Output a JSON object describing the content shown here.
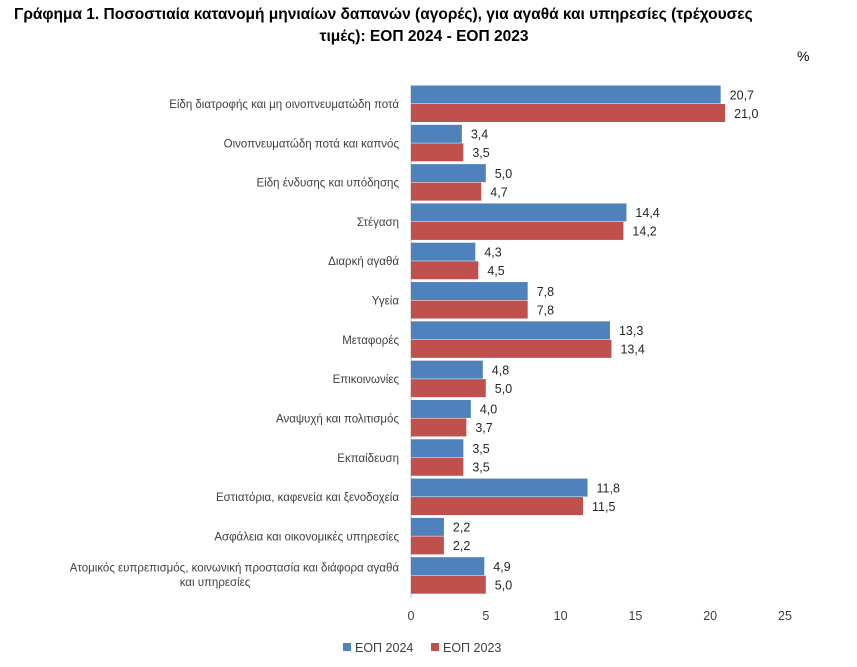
{
  "title_line1": "Γράφημα 1. Ποσοστιαία κατανομή μηνιαίων δαπανών (αγορές), για αγαθά και υπηρεσίες (τρέχουσες",
  "title_line2": "τιμές): ΕΟΠ 2024 - ΕΟΠ 2023",
  "unit": "%",
  "chart_data": {
    "type": "bar",
    "orientation": "horizontal",
    "title": "Γράφημα 1. Ποσοστιαία κατανομή μηνιαίων δαπανών (αγορές), για αγαθά και υπηρεσίες (τρέχουσες τιμές): ΕΟΠ 2024 - ΕΟΠ 2023",
    "categories": [
      [
        "Είδη διατροφής και μη οινοπνευματώδη ποτά"
      ],
      [
        "Οινοπνευματώδη ποτά και καπνός"
      ],
      [
        "Είδη ένδυσης και υπόδησης"
      ],
      [
        "Στέγαση"
      ],
      [
        "Διαρκή αγαθά"
      ],
      [
        "Υγεία"
      ],
      [
        "Μεταφορές"
      ],
      [
        "Επικοινωνίες"
      ],
      [
        "Αναψυχή και πολιτισμός"
      ],
      [
        "Εκπαίδευση"
      ],
      [
        "Εστιατόρια, καφενεία και ξενοδοχεία"
      ],
      [
        "Ασφάλεια και  οικονομικές υπηρεσίες"
      ],
      [
        "Ατομικός ευπρεπισμός, κοινωνική προστασία και διάφορα αγαθά",
        "και υπηρεσίες"
      ]
    ],
    "series": [
      {
        "name": "ΕΟΠ 2024",
        "color": "#4f81bd",
        "values": [
          20.7,
          3.4,
          5.0,
          14.4,
          4.3,
          7.8,
          13.3,
          4.8,
          4.0,
          3.5,
          11.8,
          2.2,
          4.9
        ],
        "labels": [
          "20,7",
          "3,4",
          "5,0",
          "14,4",
          "4,3",
          "7,8",
          "13,3",
          "4,8",
          "4,0",
          "3,5",
          "11,8",
          "2,2",
          "4,9"
        ]
      },
      {
        "name": "ΕΟΠ 2023",
        "color": "#c0504d",
        "values": [
          21.0,
          3.5,
          4.7,
          14.2,
          4.5,
          7.8,
          13.4,
          5.0,
          3.7,
          3.5,
          11.5,
          2.2,
          5.0
        ],
        "labels": [
          "21,0",
          "3,5",
          "4,7",
          "14,2",
          "4,5",
          "7,8",
          "13,4",
          "5,0",
          "3,7",
          "3,5",
          "11,5",
          "2,2",
          "5,0"
        ]
      }
    ],
    "xlim": [
      0,
      25
    ],
    "xticks": [
      0,
      5,
      10,
      15,
      20,
      25
    ],
    "xlabel": "",
    "ylabel": "",
    "grid": false,
    "legend": "bottom"
  }
}
